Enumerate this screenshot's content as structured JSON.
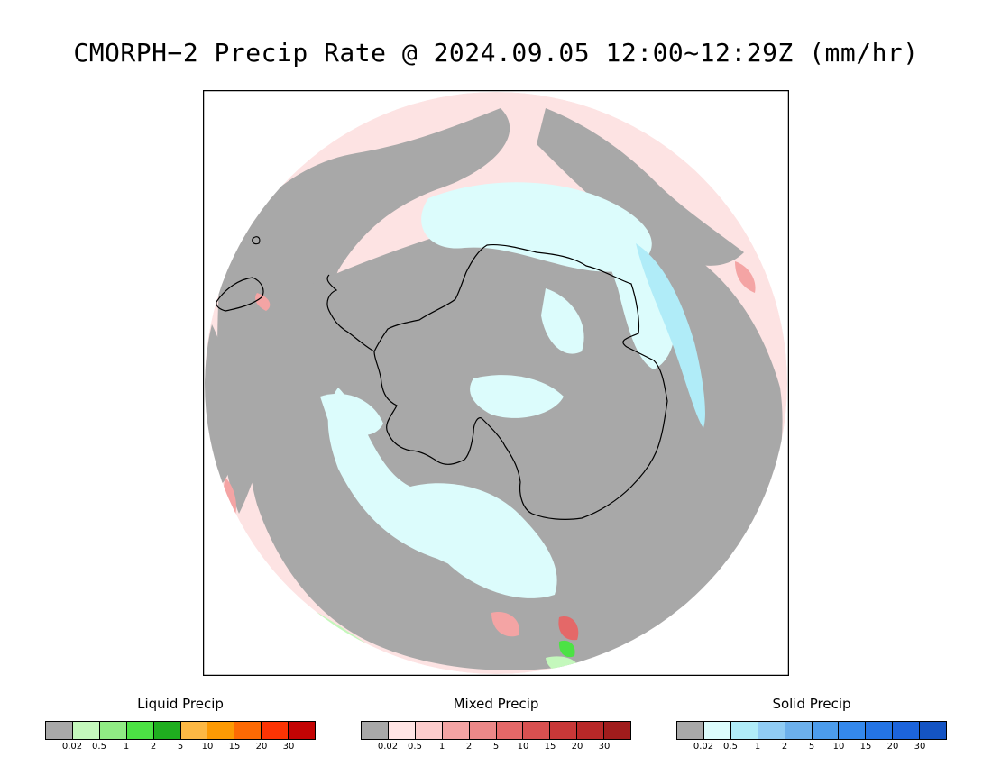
{
  "title": "CMORPH−2 Precip Rate @ 2024.09.05 12:00~12:29Z (mm/hr)",
  "tick_labels": [
    "0.02",
    "0.5",
    "1",
    "2",
    "5",
    "10",
    "15",
    "20",
    "30"
  ],
  "legends": [
    {
      "title": "Liquid Precip",
      "colors": [
        "#a8a8a8",
        "#c4f8bc",
        "#90ec84",
        "#4ce244",
        "#1fae1f",
        "#fcb844",
        "#fc9a04",
        "#fc6a04",
        "#fc3404",
        "#c40404"
      ]
    },
    {
      "title": "Mixed Precip",
      "colors": [
        "#a8a8a8",
        "#ffe4e4",
        "#fccccc",
        "#f4a4a4",
        "#ec8888",
        "#e46868",
        "#d85050",
        "#c83838",
        "#b82828",
        "#a01c1c"
      ]
    },
    {
      "title": "Solid Precip",
      "colors": [
        "#a8a8a8",
        "#dcfcfc",
        "#b0ecf8",
        "#90ccf4",
        "#6cb0ec",
        "#4c9cec",
        "#3488ec",
        "#2474e4",
        "#1c64dc",
        "#1454c4"
      ]
    }
  ],
  "map": {
    "projection": "south-polar-stereographic",
    "colors": {
      "no_precip": "#a8a8a8",
      "mixed_light": "#fde3e3",
      "mixed_mid": "#f4a4a4",
      "mixed_heavy": "#e46868",
      "solid_light": "#dcfcfc",
      "solid_mid": "#b0ecf8",
      "liquid_light": "#c4f8bc",
      "liquid_mid": "#4ce244",
      "coast": "#000000"
    }
  }
}
